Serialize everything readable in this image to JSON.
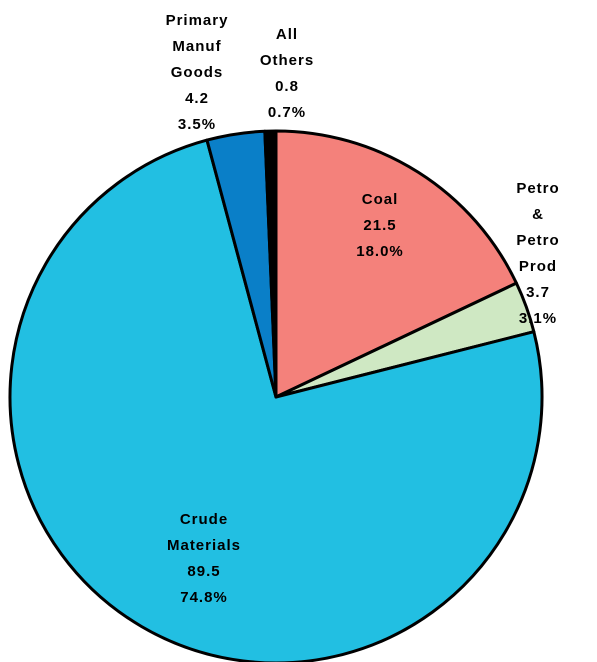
{
  "chart_data": {
    "type": "pie",
    "categories": [
      "Coal",
      "Petro &\nPetro\nProd",
      "Crude\nMaterials",
      "Primary\nManuf\nGoods",
      "All\nOthers"
    ],
    "values": [
      21.5,
      3.7,
      89.5,
      4.2,
      0.8
    ],
    "percents": [
      18,
      3.1,
      74.8,
      3.5,
      0.7
    ],
    "percent_labels": [
      "18.0%",
      "3.1%",
      "74.8%",
      "3.5%",
      "0.7%"
    ],
    "colors": [
      "#f4817b",
      "#cfe8c3",
      "#22bfe2",
      "#0a7fc8",
      "#000000"
    ]
  }
}
